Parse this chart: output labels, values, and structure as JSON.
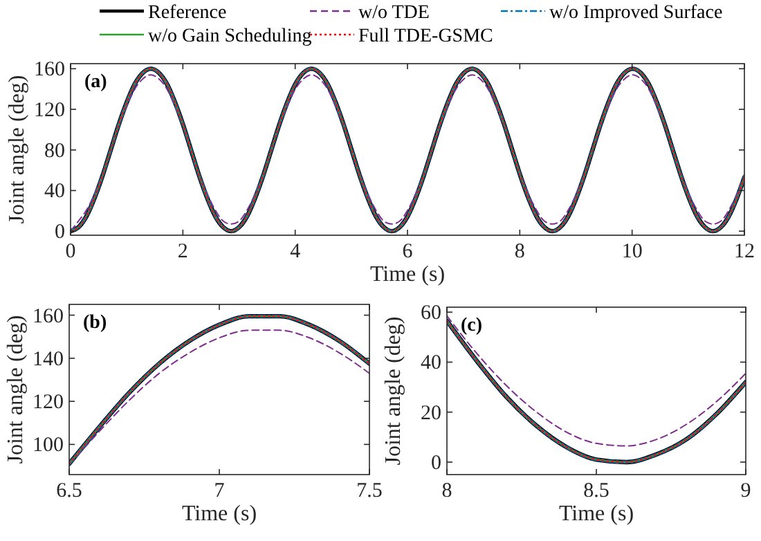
{
  "chart_data": [
    {
      "type": "line",
      "legend": "top",
      "xlabel": "Time (s)",
      "ylabel": "Joint angle (deg)",
      "annotations": [
        "(a)"
      ],
      "xlim": [
        0,
        12
      ],
      "xticks": [
        0,
        2,
        4,
        6,
        8,
        10,
        12
      ],
      "ylim": [
        -4,
        165
      ],
      "yticks": [
        0,
        40,
        80,
        120,
        160
      ],
      "x": [
        0,
        0.143,
        0.286,
        0.429,
        0.572,
        0.715,
        0.858,
        1.001,
        1.144,
        1.287,
        1.43,
        1.573,
        1.716,
        1.859,
        2.002,
        2.145,
        2.288,
        2.431,
        2.574,
        2.717,
        2.86,
        3.003,
        3.146,
        3.289,
        3.432,
        3.575,
        3.718,
        3.861,
        4.004,
        4.147,
        4.29,
        4.433,
        4.576,
        4.719,
        4.862,
        5.005,
        5.148,
        5.291,
        5.434,
        5.577,
        5.72,
        5.863,
        6.006,
        6.149,
        6.292,
        6.435,
        6.578,
        6.721,
        6.864,
        7.007,
        7.15,
        7.293,
        7.436,
        7.579,
        7.722,
        7.865,
        8.008,
        8.151,
        8.294,
        8.437,
        8.58,
        8.723,
        8.866,
        9.009,
        9.152,
        9.295,
        9.438,
        9.581,
        9.724,
        9.867,
        10.01,
        10.153,
        10.296,
        10.439,
        10.582,
        10.725,
        10.868,
        11.011,
        11.154,
        11.297,
        11.44,
        11.583,
        11.726,
        11.869,
        12
      ],
      "series": [
        {
          "name": "Reference",
          "color": "#000000",
          "line_style": "solid",
          "values": [
            0,
            4,
            15,
            33,
            55,
            80,
            105,
            127,
            145,
            156,
            160,
            156,
            145,
            127,
            105,
            80,
            55,
            33,
            15,
            4,
            0,
            4,
            15,
            33,
            55,
            80,
            105,
            127,
            145,
            156,
            160,
            156,
            145,
            127,
            105,
            80,
            55,
            33,
            15,
            4,
            0,
            4,
            15,
            33,
            55,
            80,
            105,
            127,
            145,
            156,
            160,
            156,
            145,
            127,
            105,
            80,
            55,
            33,
            15,
            4,
            0,
            4,
            15,
            33,
            55,
            80,
            105,
            127,
            145,
            156,
            160,
            156,
            145,
            127,
            105,
            80,
            55,
            33,
            15,
            4,
            0,
            4,
            15,
            33,
            53
          ]
        },
        {
          "name": "w/o TDE",
          "color": "#7e2f8e",
          "line_style": "dashed",
          "values": [
            0,
            10,
            21,
            37,
            57,
            80,
            103,
            123,
            140,
            150,
            154,
            150,
            140,
            123,
            103,
            80,
            57,
            37,
            21,
            10,
            7,
            10,
            21,
            37,
            57,
            80,
            103,
            123,
            140,
            150,
            154,
            150,
            140,
            123,
            103,
            80,
            57,
            37,
            21,
            10,
            7,
            10,
            21,
            37,
            57,
            80,
            103,
            123,
            140,
            150,
            154,
            150,
            140,
            123,
            103,
            80,
            57,
            37,
            21,
            10,
            7,
            10,
            21,
            37,
            57,
            80,
            103,
            123,
            140,
            150,
            154,
            150,
            140,
            123,
            103,
            80,
            57,
            37,
            21,
            10,
            7,
            10,
            21,
            37,
            56
          ]
        },
        {
          "name": "w/o Improved Surface",
          "color": "#0072bd",
          "line_style": "dashdot",
          "values": [
            0,
            4,
            15,
            33,
            55,
            80,
            105,
            127,
            145,
            156,
            160,
            156,
            145,
            127,
            105,
            80,
            55,
            33,
            15,
            4,
            0,
            4,
            15,
            33,
            55,
            80,
            105,
            127,
            145,
            156,
            160,
            156,
            145,
            127,
            105,
            80,
            55,
            33,
            15,
            4,
            0,
            4,
            15,
            33,
            55,
            80,
            105,
            127,
            145,
            156,
            160,
            156,
            145,
            127,
            105,
            80,
            55,
            33,
            15,
            4,
            0,
            4,
            15,
            33,
            55,
            80,
            105,
            127,
            145,
            156,
            160,
            156,
            145,
            127,
            105,
            80,
            55,
            33,
            15,
            4,
            0,
            4,
            15,
            33,
            53
          ]
        },
        {
          "name": "w/o Gain Scheduling",
          "color": "#2ca02c",
          "line_style": "solid",
          "values": [
            0,
            4,
            15,
            33,
            55,
            80,
            105,
            127,
            145,
            156,
            160,
            156,
            145,
            127,
            105,
            80,
            55,
            33,
            15,
            4,
            0,
            4,
            15,
            33,
            55,
            80,
            105,
            127,
            145,
            156,
            160,
            156,
            145,
            127,
            105,
            80,
            55,
            33,
            15,
            4,
            0,
            4,
            15,
            33,
            55,
            80,
            105,
            127,
            145,
            156,
            160,
            156,
            145,
            127,
            105,
            80,
            55,
            33,
            15,
            4,
            0,
            4,
            15,
            33,
            55,
            80,
            105,
            127,
            145,
            156,
            160,
            156,
            145,
            127,
            105,
            80,
            55,
            33,
            15,
            4,
            0,
            4,
            15,
            33,
            53
          ]
        },
        {
          "name": "Full TDE-GSMC",
          "color": "#ff0000",
          "line_style": "dotted",
          "values": [
            0,
            4,
            15,
            33,
            55,
            80,
            105,
            127,
            145,
            156,
            160,
            156,
            145,
            127,
            105,
            80,
            55,
            33,
            15,
            4,
            0,
            4,
            15,
            33,
            55,
            80,
            105,
            127,
            145,
            156,
            160,
            156,
            145,
            127,
            105,
            80,
            55,
            33,
            15,
            4,
            0,
            4,
            15,
            33,
            55,
            80,
            105,
            127,
            145,
            156,
            160,
            156,
            145,
            127,
            105,
            80,
            55,
            33,
            15,
            4,
            0,
            4,
            15,
            33,
            55,
            80,
            105,
            127,
            145,
            156,
            160,
            156,
            145,
            127,
            105,
            80,
            55,
            33,
            15,
            4,
            0,
            4,
            15,
            33,
            53
          ]
        }
      ]
    },
    {
      "type": "line",
      "xlabel": "Time (s)",
      "ylabel": "Joint angle (deg)",
      "annotations": [
        "(b)"
      ],
      "xlim": [
        6.5,
        7.5
      ],
      "xticks": [
        6.5,
        7,
        7.5
      ],
      "ylim": [
        86,
        165
      ],
      "yticks": [
        100,
        120,
        140,
        160
      ],
      "x": [
        6.5,
        6.6,
        6.7,
        6.8,
        6.9,
        7.0,
        7.1,
        7.2,
        7.3,
        7.4,
        7.5
      ],
      "series": [
        {
          "color": "#000000",
          "line_style": "solid",
          "values": [
            91,
            108,
            124,
            137.5,
            148,
            155.5,
            159.5,
            159.5,
            155.5,
            148,
            137.5
          ]
        },
        {
          "color": "#7e2f8e",
          "line_style": "dashed",
          "values": [
            90.5,
            106,
            120.5,
            133,
            142.5,
            149.5,
            153,
            153,
            149.5,
            142.5,
            133
          ]
        },
        {
          "color": "#0072bd",
          "line_style": "dashdot",
          "values": [
            91,
            108,
            124,
            137.5,
            148,
            155.5,
            159.5,
            159.5,
            155.5,
            148,
            137.5
          ]
        },
        {
          "color": "#2ca02c",
          "line_style": "solid",
          "values": [
            91,
            108,
            124,
            137.5,
            148,
            155.5,
            159.5,
            159.5,
            155.5,
            148,
            137.5
          ]
        },
        {
          "color": "#ff0000",
          "line_style": "dotted",
          "values": [
            91,
            108,
            124,
            137.5,
            148,
            155.5,
            159.5,
            159.5,
            155.5,
            148,
            137.5
          ]
        }
      ]
    },
    {
      "type": "line",
      "xlabel": "Time (s)",
      "ylabel": "Joint angle (deg)",
      "annotations": [
        "(c)"
      ],
      "xlim": [
        8,
        9
      ],
      "xticks": [
        8,
        8.5,
        9
      ],
      "ylim": [
        -5,
        62
      ],
      "yticks": [
        0,
        20,
        40,
        60
      ],
      "x": [
        8.0,
        8.1,
        8.2,
        8.3,
        8.4,
        8.5,
        8.6,
        8.7,
        8.8,
        8.9,
        9.0
      ],
      "series": [
        {
          "color": "#000000",
          "line_style": "solid",
          "values": [
            56.5,
            40.5,
            26,
            14.5,
            6,
            1,
            0,
            3,
            9,
            19,
            32
          ]
        },
        {
          "color": "#7e2f8e",
          "line_style": "dashed",
          "values": [
            58.5,
            43.5,
            30.5,
            20,
            12,
            7.5,
            6.5,
            9,
            15,
            24,
            35.5
          ]
        },
        {
          "color": "#0072bd",
          "line_style": "dashdot",
          "values": [
            56.5,
            40.5,
            26,
            14.5,
            6,
            1,
            0,
            3,
            9,
            19,
            32
          ]
        },
        {
          "color": "#2ca02c",
          "line_style": "solid",
          "values": [
            56.5,
            40.5,
            26,
            14.5,
            6,
            1,
            0,
            3,
            9,
            19,
            32
          ]
        },
        {
          "color": "#ff0000",
          "line_style": "dotted",
          "values": [
            56.5,
            40.5,
            26,
            14.5,
            6,
            1,
            0,
            3,
            9,
            19,
            32
          ]
        }
      ]
    }
  ]
}
